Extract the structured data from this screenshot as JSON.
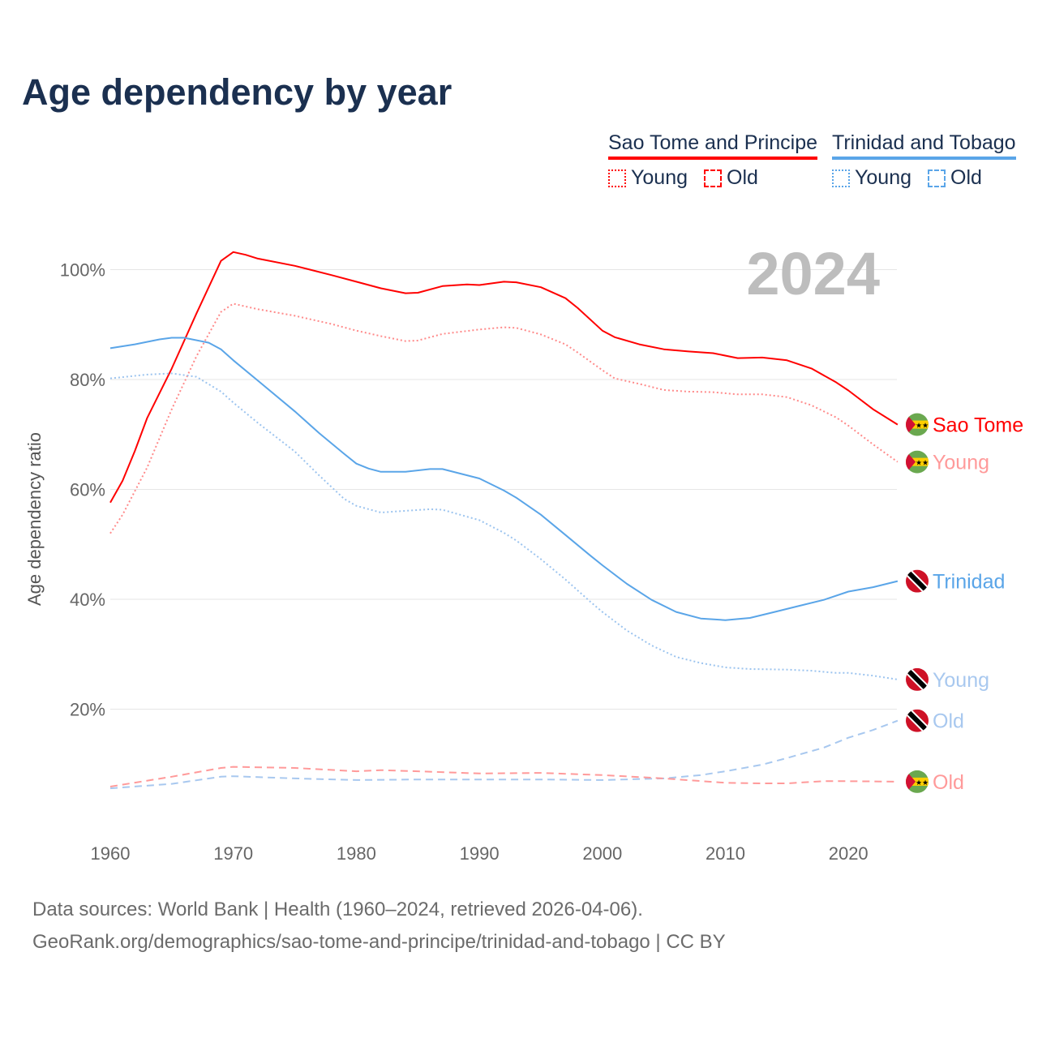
{
  "title": "Age dependency by year",
  "legend": {
    "groups": [
      {
        "name": "Sao Tome and Principe",
        "color": "#ff0000",
        "items": [
          {
            "label": "Young",
            "style": "dotted"
          },
          {
            "label": "Old",
            "style": "dashed"
          }
        ]
      },
      {
        "name": "Trinidad and Tobago",
        "color": "#5aa5e8",
        "items": [
          {
            "label": "Young",
            "style": "dotted"
          },
          {
            "label": "Old",
            "style": "dashed"
          }
        ]
      }
    ]
  },
  "footer": {
    "line1": "Data sources: World Bank | Health (1960–2024, retrieved 2026-04-06).",
    "line2": "GeoRank.org/demographics/sao-tome-and-principe/trinidad-and-tobago | CC BY"
  },
  "chart_data": {
    "type": "line",
    "title": "Age dependency by year",
    "year_watermark": "2024",
    "xlabel": "",
    "ylabel": "Age dependency ratio",
    "xlim": [
      1960,
      2024
    ],
    "ylim": [
      0,
      105
    ],
    "x_ticks": [
      "1960",
      "1970",
      "1980",
      "1990",
      "2000",
      "2010",
      "2020"
    ],
    "y_ticks": [
      "20%",
      "40%",
      "60%",
      "80%",
      "100%"
    ],
    "grid": true,
    "series": [
      {
        "name": "Sao Tome and Principe",
        "end_label": "Sao Tome",
        "country": "stp",
        "color": "#ff0000",
        "label_color": "#ff0000",
        "dash": "solid",
        "points": [
          [
            1960,
            57.6
          ],
          [
            1961,
            61.6
          ],
          [
            1962,
            67
          ],
          [
            1963,
            73
          ],
          [
            1965,
            82
          ],
          [
            1967,
            92
          ],
          [
            1969,
            101.6
          ],
          [
            1970,
            103.2
          ],
          [
            1971,
            102.7
          ],
          [
            1972,
            102
          ],
          [
            1975,
            100.7
          ],
          [
            1978,
            99
          ],
          [
            1980,
            97.8
          ],
          [
            1982,
            96.6
          ],
          [
            1984,
            95.7
          ],
          [
            1985,
            95.8
          ],
          [
            1987,
            97
          ],
          [
            1989,
            97.3
          ],
          [
            1990,
            97.2
          ],
          [
            1992,
            97.8
          ],
          [
            1993,
            97.7
          ],
          [
            1995,
            96.8
          ],
          [
            1997,
            94.8
          ],
          [
            1998,
            93
          ],
          [
            2000,
            88.9
          ],
          [
            2001,
            87.7
          ],
          [
            2003,
            86.4
          ],
          [
            2005,
            85.5
          ],
          [
            2007,
            85.1
          ],
          [
            2009,
            84.8
          ],
          [
            2011,
            83.9
          ],
          [
            2013,
            84
          ],
          [
            2015,
            83.5
          ],
          [
            2017,
            82
          ],
          [
            2019,
            79.5
          ],
          [
            2020,
            78
          ],
          [
            2022,
            74.6
          ],
          [
            2024,
            71.8
          ]
        ]
      },
      {
        "name": "Sao Tome and Principe Young",
        "end_label": "Young",
        "country": "stp",
        "color": "#ff8a8a",
        "label_color": "#ff9a9a",
        "dash": "dotted",
        "points": [
          [
            1960,
            52
          ],
          [
            1961,
            55.4
          ],
          [
            1963,
            64
          ],
          [
            1965,
            74.6
          ],
          [
            1967,
            84.2
          ],
          [
            1969,
            92.3
          ],
          [
            1970,
            93.8
          ],
          [
            1972,
            92.8
          ],
          [
            1975,
            91.6
          ],
          [
            1978,
            90.1
          ],
          [
            1980,
            88.9
          ],
          [
            1982,
            87.9
          ],
          [
            1984,
            87
          ],
          [
            1985,
            87.1
          ],
          [
            1987,
            88.3
          ],
          [
            1990,
            89.1
          ],
          [
            1992,
            89.5
          ],
          [
            1993,
            89.4
          ],
          [
            1995,
            88.2
          ],
          [
            1997,
            86.4
          ],
          [
            1998,
            84.9
          ],
          [
            2000,
            81.7
          ],
          [
            2001,
            80.2
          ],
          [
            2003,
            79.2
          ],
          [
            2005,
            78.1
          ],
          [
            2007,
            77.8
          ],
          [
            2009,
            77.7
          ],
          [
            2011,
            77.3
          ],
          [
            2013,
            77.3
          ],
          [
            2015,
            76.8
          ],
          [
            2017,
            75.3
          ],
          [
            2019,
            73.1
          ],
          [
            2020,
            71.6
          ],
          [
            2022,
            68.2
          ],
          [
            2024,
            65
          ]
        ]
      },
      {
        "name": "Trinidad and Tobago",
        "end_label": "Trinidad",
        "country": "tto",
        "color": "#5aa5e8",
        "label_color": "#5aa5e8",
        "dash": "solid",
        "points": [
          [
            1960,
            85.7
          ],
          [
            1962,
            86.4
          ],
          [
            1964,
            87.3
          ],
          [
            1965,
            87.6
          ],
          [
            1966,
            87.6
          ],
          [
            1968,
            86.7
          ],
          [
            1969,
            85.5
          ],
          [
            1970,
            83.5
          ],
          [
            1972,
            79.8
          ],
          [
            1975,
            74.2
          ],
          [
            1977,
            70.2
          ],
          [
            1979,
            66.5
          ],
          [
            1980,
            64.7
          ],
          [
            1981,
            63.8
          ],
          [
            1982,
            63.2
          ],
          [
            1984,
            63.2
          ],
          [
            1986,
            63.7
          ],
          [
            1987,
            63.7
          ],
          [
            1990,
            62
          ],
          [
            1992,
            59.8
          ],
          [
            1993,
            58.5
          ],
          [
            1995,
            55.4
          ],
          [
            1997,
            51.7
          ],
          [
            1999,
            48
          ],
          [
            2000,
            46.2
          ],
          [
            2002,
            42.8
          ],
          [
            2004,
            39.9
          ],
          [
            2006,
            37.7
          ],
          [
            2008,
            36.5
          ],
          [
            2010,
            36.2
          ],
          [
            2012,
            36.6
          ],
          [
            2014,
            37.7
          ],
          [
            2016,
            38.8
          ],
          [
            2018,
            39.9
          ],
          [
            2020,
            41.4
          ],
          [
            2022,
            42.2
          ],
          [
            2024,
            43.3
          ]
        ]
      },
      {
        "name": "Trinidad and Tobago Young",
        "end_label": "Young",
        "country": "tto",
        "color": "#9cc4ef",
        "label_color": "#a8c8ef",
        "dash": "dotted",
        "points": [
          [
            1960,
            80.2
          ],
          [
            1963,
            80.9
          ],
          [
            1965,
            81.1
          ],
          [
            1967,
            80.5
          ],
          [
            1969,
            77.8
          ],
          [
            1970,
            75.8
          ],
          [
            1972,
            72.1
          ],
          [
            1975,
            66.9
          ],
          [
            1977,
            62.5
          ],
          [
            1979,
            58.3
          ],
          [
            1980,
            57
          ],
          [
            1982,
            55.8
          ],
          [
            1984,
            56.1
          ],
          [
            1986,
            56.4
          ],
          [
            1987,
            56.3
          ],
          [
            1990,
            54.4
          ],
          [
            1992,
            52.1
          ],
          [
            1993,
            50.7
          ],
          [
            1995,
            47.3
          ],
          [
            1997,
            43.6
          ],
          [
            1999,
            39.6
          ],
          [
            2000,
            37.7
          ],
          [
            2002,
            34.3
          ],
          [
            2004,
            31.6
          ],
          [
            2006,
            29.5
          ],
          [
            2008,
            28.4
          ],
          [
            2010,
            27.6
          ],
          [
            2012,
            27.3
          ],
          [
            2015,
            27.2
          ],
          [
            2017,
            27
          ],
          [
            2019,
            26.6
          ],
          [
            2020,
            26.6
          ],
          [
            2022,
            26.1
          ],
          [
            2024,
            25.4
          ]
        ]
      },
      {
        "name": "Trinidad and Tobago Old",
        "end_label": "Old",
        "country": "tto",
        "color": "#a8c8ef",
        "label_color": "#a8c8ef",
        "dash": "dashed",
        "points": [
          [
            1960,
            5.6
          ],
          [
            1965,
            6.4
          ],
          [
            1969,
            7.7
          ],
          [
            1970,
            7.8
          ],
          [
            1975,
            7.4
          ],
          [
            1980,
            7.1
          ],
          [
            1985,
            7.2
          ],
          [
            1990,
            7.2
          ],
          [
            1995,
            7.2
          ],
          [
            2000,
            7.1
          ],
          [
            2005,
            7.4
          ],
          [
            2008,
            8
          ],
          [
            2010,
            8.7
          ],
          [
            2013,
            9.9
          ],
          [
            2015,
            11.1
          ],
          [
            2018,
            13
          ],
          [
            2020,
            14.8
          ],
          [
            2022,
            16.2
          ],
          [
            2024,
            17.9
          ]
        ]
      },
      {
        "name": "Sao Tome and Principe Old",
        "end_label": "Old",
        "country": "stp",
        "color": "#ff9a9a",
        "label_color": "#ff9a9a",
        "dash": "dashed",
        "points": [
          [
            1960,
            5.9
          ],
          [
            1965,
            7.7
          ],
          [
            1969,
            9.3
          ],
          [
            1970,
            9.5
          ],
          [
            1975,
            9.3
          ],
          [
            1980,
            8.7
          ],
          [
            1982,
            8.9
          ],
          [
            1985,
            8.7
          ],
          [
            1990,
            8.3
          ],
          [
            1995,
            8.4
          ],
          [
            2000,
            8
          ],
          [
            2005,
            7.4
          ],
          [
            2010,
            6.6
          ],
          [
            2013,
            6.5
          ],
          [
            2015,
            6.5
          ],
          [
            2018,
            6.9
          ],
          [
            2020,
            6.9
          ],
          [
            2024,
            6.8
          ]
        ]
      }
    ]
  }
}
